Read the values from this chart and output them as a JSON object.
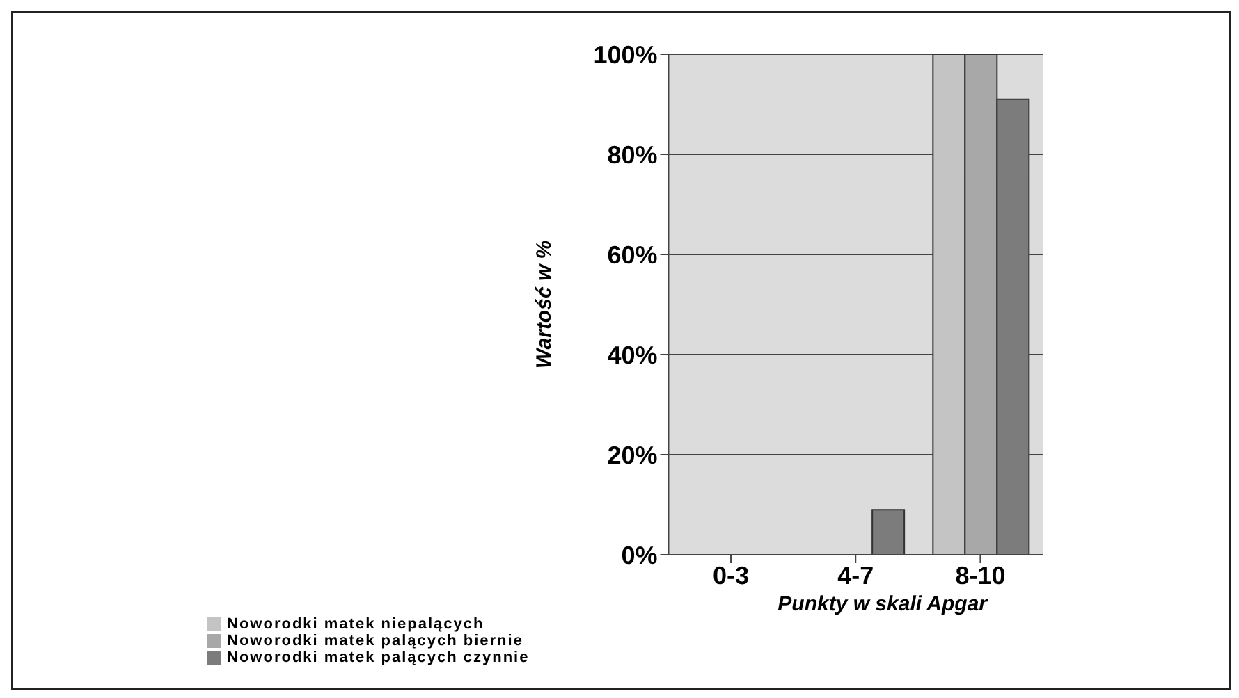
{
  "chart_data": {
    "type": "bar",
    "xlabel": "Punkty w skali Apgar",
    "ylabel": "Wartość w %",
    "categories": [
      "0-3",
      "4-7",
      "8-10"
    ],
    "series": [
      {
        "name": "Noworodki matek niepalących",
        "color": "#c4c4c4",
        "values": [
          0,
          0,
          100
        ]
      },
      {
        "name": "Noworodki matek palących biernie",
        "color": "#a8a8a8",
        "values": [
          0,
          0,
          100
        ]
      },
      {
        "name": "Noworodki matek palących czynnie",
        "color": "#7c7c7c",
        "values": [
          0,
          9,
          91
        ]
      }
    ],
    "ylim": [
      0,
      100
    ],
    "yticks": [
      {
        "value": 0,
        "label": "0%"
      },
      {
        "value": 20,
        "label": "20%"
      },
      {
        "value": 40,
        "label": "40%"
      },
      {
        "value": 60,
        "label": "60%"
      },
      {
        "value": 80,
        "label": "80%"
      },
      {
        "value": 100,
        "label": "100%"
      }
    ],
    "grid": "y",
    "legend": "bottom left"
  }
}
